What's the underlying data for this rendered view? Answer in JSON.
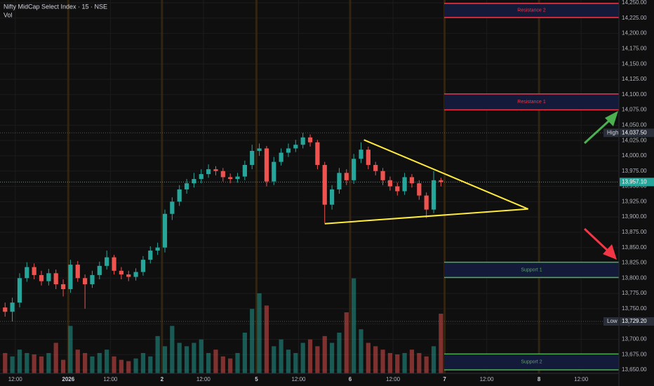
{
  "chart_data": {
    "type": "candlestick",
    "title": "Nifty MidCap Select Index · 15 · NSE",
    "volume_label": "Vol",
    "up_color": "#26a69a",
    "down_color": "#ef5350",
    "open": [
      13752,
      13745,
      13760,
      13800,
      13818,
      13805,
      13795,
      13808,
      13790,
      13782,
      13822,
      13800,
      13790,
      13805,
      13820,
      13834,
      13812,
      13806,
      13802,
      13810,
      13830,
      13845,
      13850,
      13905,
      13925,
      13945,
      13955,
      13962,
      13970,
      13978,
      13975,
      13965,
      13962,
      13966,
      13985,
      14008,
      14012,
      13958,
      13990,
      14005,
      14012,
      14018,
      14030,
      14022,
      13985,
      13920,
      13945,
      13972,
      13960,
      13995,
      14010,
      13985,
      13975,
      13960,
      13950,
      13942,
      13965,
      13955,
      13935,
      13912,
      13960
    ],
    "high": [
      13760,
      13768,
      13808,
      13826,
      13824,
      13812,
      13815,
      13814,
      13798,
      13830,
      13828,
      13806,
      13812,
      13827,
      13845,
      13838,
      13818,
      13812,
      13816,
      13836,
      13852,
      13858,
      13912,
      13932,
      13952,
      13962,
      13972,
      13978,
      13986,
      13983,
      13980,
      13971,
      13972,
      13992,
      14018,
      14020,
      14016,
      13998,
      14012,
      14020,
      14026,
      14037.5,
      14035,
      14026,
      13990,
      13952,
      13980,
      13978,
      14003,
      14022,
      14015,
      13990,
      13980,
      13966,
      13956,
      13972,
      13970,
      13960,
      13940,
      13975,
      13964
    ],
    "low": [
      13737,
      13729.2,
      13752,
      13794,
      13798,
      13788,
      13788,
      13782,
      13770,
      13776,
      13794,
      13750,
      13784,
      13798,
      13814,
      13806,
      13798,
      13795,
      13796,
      13804,
      13824,
      13838,
      13842,
      13895,
      13918,
      13938,
      13948,
      13955,
      13964,
      13968,
      13958,
      13955,
      13956,
      13960,
      13978,
      14000,
      13950,
      13952,
      13984,
      13998,
      14006,
      14012,
      14015,
      13978,
      13890,
      13912,
      13938,
      13952,
      13954,
      13988,
      13978,
      13968,
      13952,
      13943,
      13935,
      13936,
      13948,
      13928,
      13898,
      13906,
      13950
    ],
    "close": [
      13745,
      13760,
      13800,
      13818,
      13805,
      13795,
      13808,
      13790,
      13782,
      13822,
      13800,
      13790,
      13805,
      13820,
      13834,
      13812,
      13806,
      13802,
      13810,
      13830,
      13845,
      13850,
      13905,
      13925,
      13945,
      13955,
      13962,
      13970,
      13978,
      13975,
      13965,
      13962,
      13966,
      13985,
      14008,
      14012,
      13958,
      13990,
      14005,
      14012,
      14018,
      14030,
      14022,
      13985,
      13920,
      13945,
      13972,
      13960,
      13995,
      14010,
      13985,
      13975,
      13960,
      13950,
      13942,
      13965,
      13955,
      13935,
      13912,
      13960,
      13957.1
    ],
    "volume": [
      30,
      25,
      35,
      30,
      28,
      25,
      30,
      45,
      20,
      70,
      35,
      30,
      25,
      30,
      35,
      25,
      20,
      18,
      22,
      30,
      25,
      55,
      40,
      70,
      45,
      40,
      45,
      50,
      30,
      35,
      25,
      22,
      30,
      60,
      95,
      118,
      100,
      40,
      50,
      35,
      30,
      45,
      50,
      40,
      55,
      45,
      60,
      90,
      140,
      65,
      45,
      40,
      35,
      30,
      28,
      30,
      35,
      30,
      25,
      40,
      88
    ],
    "volume_lim": [
      0,
      150
    ],
    "xlim": [
      -0.7,
      84.5
    ],
    "xticks": [
      {
        "value": 1.4,
        "label": "12:00"
      },
      {
        "value": 8.7,
        "label": "2026"
      },
      {
        "value": 14.5,
        "label": "12:00"
      },
      {
        "value": 21.6,
        "label": "2"
      },
      {
        "value": 27.3,
        "label": "12:00"
      },
      {
        "value": 34.6,
        "label": "5"
      },
      {
        "value": 40.4,
        "label": "12:00"
      },
      {
        "value": 47.5,
        "label": "6"
      },
      {
        "value": 53.4,
        "label": "12:00"
      },
      {
        "value": 60.5,
        "label": "7"
      },
      {
        "value": 66.3,
        "label": "12:00"
      },
      {
        "value": 73.5,
        "label": "8"
      },
      {
        "value": 79.3,
        "label": "12:00"
      }
    ],
    "ylim": [
      13644.3,
      14254.6
    ],
    "yticks": [
      {
        "value": 13650,
        "label": "13,650.00"
      },
      {
        "value": 13675,
        "label": "13,675.00"
      },
      {
        "value": 13700,
        "label": "13,700.00"
      },
      {
        "value": 13725,
        "label": "13,725.00"
      },
      {
        "value": 13750,
        "label": "13,750.00"
      },
      {
        "value": 13775,
        "label": "13,775.00"
      },
      {
        "value": 13800,
        "label": "13,800.00"
      },
      {
        "value": 13825,
        "label": "13,825.00"
      },
      {
        "value": 13850,
        "label": "13,850.00"
      },
      {
        "value": 13875,
        "label": "13,875.00"
      },
      {
        "value": 13900,
        "label": "13,900.00"
      },
      {
        "value": 13925,
        "label": "13,925.00"
      },
      {
        "value": 13950,
        "label": "13,950.00"
      },
      {
        "value": 13975,
        "label": "13,975.00"
      },
      {
        "value": 14000,
        "label": "14,000.00"
      },
      {
        "value": 14025,
        "label": "14,025.00"
      },
      {
        "value": 14050,
        "label": "14,050.00"
      },
      {
        "value": 14075,
        "label": "14,075.00"
      },
      {
        "value": 14100,
        "label": "14,100.00"
      },
      {
        "value": 14125,
        "label": "14,125.00"
      },
      {
        "value": 14150,
        "label": "14,150.00"
      },
      {
        "value": 14175,
        "label": "14,175.00"
      },
      {
        "value": 14200,
        "label": "14,200.00"
      },
      {
        "value": 14225,
        "label": "14,225.00"
      },
      {
        "value": 14250,
        "label": "14,250.00"
      }
    ],
    "grid": true,
    "zones": [
      {
        "name": "Resistance 2",
        "top": 14249,
        "bottom": 14226,
        "color": "#f23645"
      },
      {
        "name": "Resistance 1",
        "top": 14101,
        "bottom": 14075,
        "color": "#f23645"
      },
      {
        "name": "Support 1",
        "top": 13826,
        "bottom": 13801,
        "color": "#4caf50"
      },
      {
        "name": "Support 2",
        "top": 13676,
        "bottom": 13650,
        "color": "#4caf50"
      }
    ],
    "trendlines": {
      "color": "#ffeb3b",
      "x": [
        49.4,
        72,
        44
      ],
      "y": [
        14026,
        13913,
        13889
      ]
    },
    "price_labels": [
      {
        "name": "High",
        "value": 14037.5,
        "label": "14,037.50"
      },
      {
        "name": "Low",
        "value": 13729.2,
        "label": "13,729.20"
      }
    ],
    "last_price": {
      "value": 13957.1,
      "label": "13,957.10",
      "color": "#26a69a"
    }
  }
}
